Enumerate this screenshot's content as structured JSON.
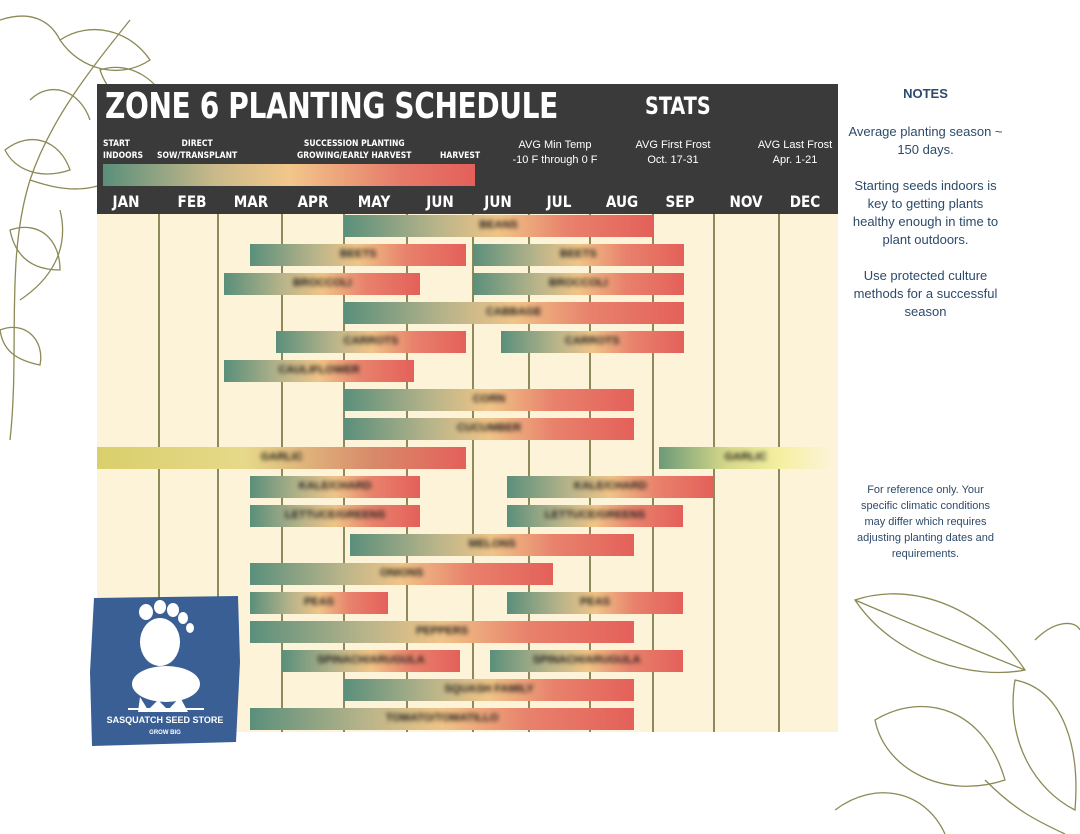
{
  "header": {
    "title": "ZONE 6 PLANTING SCHEDULE",
    "stats_title": "STATS"
  },
  "legend": {
    "start_indoors": "START\nINDOORS",
    "direct_sow": "DIRECT\nSOW/TRANSPLANT",
    "succession": "SUCCESSION PLANTING\nGROWING/EARLY HARVEST",
    "harvest": "HARVEST",
    "colors": [
      "#5a8f7b",
      "#f2c78a",
      "#e4605a"
    ]
  },
  "stats": [
    {
      "label": "AVG Min Temp",
      "value": "-10 F through 0 F"
    },
    {
      "label": "AVG First Frost",
      "value": "Oct. 17-31"
    },
    {
      "label": "AVG Last Frost",
      "value": "Apr. 1-21"
    }
  ],
  "months": [
    "JAN",
    "FEB",
    "MAR",
    "APR",
    "MAY",
    "JUN",
    "JUN",
    "JUL",
    "AUG",
    "SEP",
    "NOV",
    "DEC"
  ],
  "rows": [
    {
      "bars": [
        {
          "start": 4.0,
          "end": 9.0,
          "label": "BEANS",
          "style": "std"
        }
      ]
    },
    {
      "bars": [
        {
          "start": 2.5,
          "end": 5.9,
          "label": "BEETS",
          "style": "std"
        },
        {
          "start": 6.0,
          "end": 9.5,
          "label": "BEETS",
          "style": "std"
        }
      ]
    },
    {
      "bars": [
        {
          "start": 2.1,
          "end": 5.2,
          "label": "BROCCOLI",
          "style": "std"
        },
        {
          "start": 6.0,
          "end": 9.5,
          "label": "BROCCOLI",
          "style": "std"
        }
      ]
    },
    {
      "bars": [
        {
          "start": 4.0,
          "end": 9.5,
          "label": "CABBAGE",
          "style": "std"
        }
      ]
    },
    {
      "bars": [
        {
          "start": 2.9,
          "end": 5.9,
          "label": "CARROTS",
          "style": "std"
        },
        {
          "start": 6.5,
          "end": 9.5,
          "label": "CARROTS",
          "style": "std"
        }
      ]
    },
    {
      "bars": [
        {
          "start": 2.1,
          "end": 5.1,
          "label": "CAULIFLOWER",
          "style": "std"
        }
      ]
    },
    {
      "bars": [
        {
          "start": 4.0,
          "end": 8.7,
          "label": "CORN",
          "style": "std"
        }
      ]
    },
    {
      "bars": [
        {
          "start": 4.0,
          "end": 8.7,
          "label": "CUCUMBER",
          "style": "std"
        }
      ]
    },
    {
      "bars": [
        {
          "start": 0.0,
          "end": 5.9,
          "label": "GARLIC",
          "style": "garlic"
        },
        {
          "start": 9.1,
          "end": 11.9,
          "label": "GARLIC",
          "style": "garlic2"
        }
      ]
    },
    {
      "bars": [
        {
          "start": 2.5,
          "end": 5.2,
          "label": "KALE/CHARD",
          "style": "std"
        },
        {
          "start": 6.6,
          "end": 10.0,
          "label": "KALE/CHARD",
          "style": "std"
        }
      ]
    },
    {
      "bars": [
        {
          "start": 2.5,
          "end": 5.2,
          "label": "LETTUCE/GREENS",
          "style": "std"
        },
        {
          "start": 6.6,
          "end": 9.5,
          "label": "LETTUCE/GREENS",
          "style": "std"
        }
      ]
    },
    {
      "bars": [
        {
          "start": 4.1,
          "end": 8.7,
          "label": "MELONS",
          "style": "std"
        }
      ]
    },
    {
      "bars": [
        {
          "start": 2.5,
          "end": 7.4,
          "label": "ONIONS",
          "style": "std"
        }
      ]
    },
    {
      "bars": [
        {
          "start": 2.5,
          "end": 4.7,
          "label": "PEAS",
          "style": "std"
        },
        {
          "start": 6.6,
          "end": 9.5,
          "label": "PEAS",
          "style": "std"
        }
      ]
    },
    {
      "bars": [
        {
          "start": 2.5,
          "end": 8.7,
          "label": "PEPPERS",
          "style": "std"
        }
      ]
    },
    {
      "bars": [
        {
          "start": 3.0,
          "end": 5.8,
          "label": "SPINACH/ARUGULA",
          "style": "std"
        },
        {
          "start": 6.3,
          "end": 9.5,
          "label": "SPINACH/ARUGULA",
          "style": "std"
        }
      ]
    },
    {
      "bars": [
        {
          "start": 4.0,
          "end": 8.7,
          "label": "SQUASH FAMILY",
          "style": "std"
        }
      ]
    },
    {
      "bars": [
        {
          "start": 2.5,
          "end": 8.7,
          "label": "TOMATO/TOMATILLO",
          "style": "std"
        }
      ]
    }
  ],
  "notes": {
    "title": "NOTES",
    "items": [
      "Average planting season ~ 150 days.",
      "Starting seeds indoors is key to getting plants healthy enough in time to plant outdoors.",
      "Use protected culture methods for a successful season"
    ],
    "disclaimer": "For reference only. Your specific climatic conditions may differ which requires adjusting planting dates and requirements."
  },
  "logo": {
    "name": "SASQUATCH SEED STORE",
    "tagline": "GROW BIG",
    "color": "#3a5f95"
  }
}
